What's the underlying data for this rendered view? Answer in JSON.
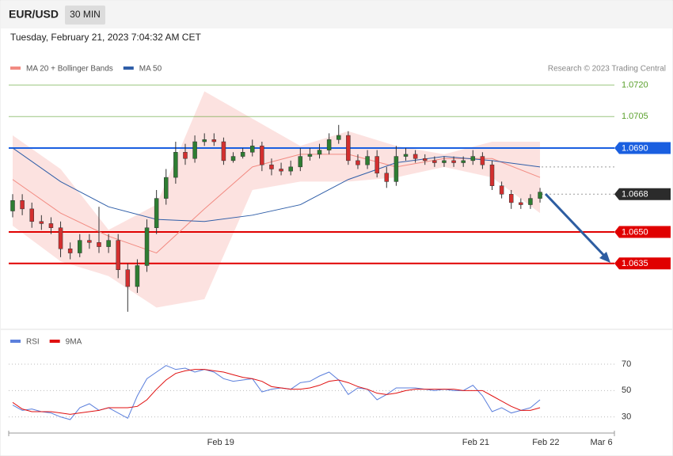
{
  "header": {
    "symbol": "EUR/USD",
    "interval": "30 MIN"
  },
  "timestamp": "Tuesday, February 21, 2023 7:04:32 AM CET",
  "chart_data": [
    {
      "type": "candlestick",
      "source": "Research © 2023 Trading Central",
      "open": [
        1.066,
        1.0665,
        1.0661,
        1.0655,
        1.0654,
        1.0652,
        1.0642,
        1.064,
        1.0646,
        1.0645,
        1.0643,
        1.0646,
        1.0632,
        1.0624,
        1.0634,
        1.0652,
        1.0666,
        1.0676,
        1.0688,
        1.0685,
        1.0693,
        1.0694,
        1.0693,
        1.0684,
        1.0686,
        1.0688,
        1.0691,
        1.0682,
        1.068,
        1.0679,
        1.0681,
        1.0686,
        1.0687,
        1.0689,
        1.0694,
        1.0696,
        1.0684,
        1.0682,
        1.0686,
        1.0678,
        1.0674,
        1.0686,
        1.0687,
        1.0685,
        1.0684,
        1.0683,
        1.0684,
        1.0683,
        1.0684,
        1.0686,
        1.0682,
        1.0672,
        1.0668,
        1.0664,
        1.0663,
        1.0666
      ],
      "high": [
        1.0668,
        1.0668,
        1.0664,
        1.0658,
        1.0657,
        1.0655,
        1.0645,
        1.0649,
        1.0649,
        1.0662,
        1.0649,
        1.0649,
        1.0635,
        1.0637,
        1.0656,
        1.067,
        1.068,
        1.0693,
        1.0692,
        1.0696,
        1.0697,
        1.0697,
        1.0695,
        1.0688,
        1.069,
        1.0694,
        1.0693,
        1.0685,
        1.0683,
        1.0684,
        1.069,
        1.069,
        1.0692,
        1.0697,
        1.0701,
        1.0698,
        1.0687,
        1.0689,
        1.0689,
        1.0681,
        1.0691,
        1.069,
        1.0689,
        1.0687,
        1.0686,
        1.0686,
        1.0686,
        1.0686,
        1.0689,
        1.0688,
        1.0684,
        1.0674,
        1.067,
        1.0666,
        1.0668,
        1.0671
      ],
      "low": [
        1.0657,
        1.0658,
        1.0652,
        1.0651,
        1.0649,
        1.0638,
        1.0637,
        1.0638,
        1.0642,
        1.064,
        1.064,
        1.0628,
        1.0612,
        1.0621,
        1.0631,
        1.0649,
        1.0663,
        1.0673,
        1.0682,
        1.0683,
        1.0691,
        1.0691,
        1.0682,
        1.0683,
        1.0685,
        1.0686,
        1.0679,
        1.0677,
        1.0677,
        1.0677,
        1.0679,
        1.0684,
        1.0685,
        1.0687,
        1.0692,
        1.0682,
        1.068,
        1.068,
        1.0676,
        1.0671,
        1.0672,
        1.0684,
        1.0683,
        1.0682,
        1.0681,
        1.0681,
        1.0681,
        1.0681,
        1.0682,
        1.068,
        1.067,
        1.0666,
        1.0661,
        1.0661,
        1.0661,
        1.0664
      ],
      "close": [
        1.0665,
        1.0661,
        1.0655,
        1.0654,
        1.0652,
        1.0642,
        1.064,
        1.0646,
        1.0645,
        1.0643,
        1.0646,
        1.0632,
        1.0624,
        1.0634,
        1.0652,
        1.0666,
        1.0676,
        1.0688,
        1.0685,
        1.0693,
        1.0694,
        1.0693,
        1.0684,
        1.0686,
        1.0688,
        1.0691,
        1.0682,
        1.068,
        1.0679,
        1.0681,
        1.0686,
        1.0687,
        1.0689,
        1.0694,
        1.0696,
        1.0684,
        1.0682,
        1.0686,
        1.0678,
        1.0674,
        1.0686,
        1.0687,
        1.0685,
        1.0684,
        1.0683,
        1.0684,
        1.0683,
        1.0684,
        1.0686,
        1.0682,
        1.0672,
        1.0668,
        1.0664,
        1.0663,
        1.0666,
        1.0669
      ],
      "up_color": "#2e7d32",
      "down_color": "#d32f2f",
      "indicator_index": [
        0,
        5,
        10,
        15,
        20,
        25,
        30,
        35,
        40,
        45,
        50,
        55
      ],
      "series": [
        {
          "name": "MA 20 + Bollinger Bands",
          "color": "#f28b82",
          "values": [
            1.0675,
            1.0659,
            1.0648,
            1.064,
            1.0661,
            1.0681,
            1.0687,
            1.0687,
            1.0681,
            1.0685,
            1.0685,
            1.0676
          ],
          "upper": [
            1.0696,
            1.068,
            1.0651,
            1.0663,
            1.0717,
            1.0704,
            1.0691,
            1.0698,
            1.0691,
            1.0687,
            1.0693,
            1.0693
          ],
          "lower": [
            1.0653,
            1.0636,
            1.0629,
            1.0614,
            1.0618,
            1.067,
            1.0674,
            1.0674,
            1.0676,
            1.0681,
            1.0676,
            1.0659
          ]
        },
        {
          "name": "MA 50",
          "color": "#2f5ea8",
          "values": [
            1.069,
            1.0674,
            1.0662,
            1.0656,
            1.0655,
            1.0658,
            1.0663,
            1.0675,
            1.0683,
            1.0686,
            1.0684,
            1.0681
          ]
        }
      ],
      "ylim": [
        1.0604,
        1.0736
      ],
      "levels": [
        {
          "value": 1.072,
          "label": "1.0720",
          "color": "#5aa02c",
          "line": "solid",
          "tag": false
        },
        {
          "value": 1.0705,
          "label": "1.0705",
          "color": "#5aa02c",
          "line": "solid",
          "tag": false
        },
        {
          "value": 1.069,
          "label": "1.0690",
          "color": "#1a5fe0",
          "line": "solid",
          "tag": true
        },
        {
          "value": 1.0668,
          "label": "1.0668",
          "color": "#2b2b2b",
          "line": "dotted",
          "tag": true
        },
        {
          "value": 1.065,
          "label": "1.0650",
          "color": "#e00000",
          "line": "solid",
          "tag": true
        },
        {
          "value": 1.0635,
          "label": "1.0635",
          "color": "#e00000",
          "line": "solid",
          "tag": true
        }
      ]
    },
    {
      "type": "line",
      "series": [
        {
          "name": "RSI",
          "color": "#5b7fdc",
          "values": [
            39,
            35,
            36,
            34,
            33,
            30,
            28,
            37,
            40,
            35,
            37,
            33,
            29,
            46,
            59,
            64,
            69,
            66,
            67,
            64,
            66,
            64,
            59,
            57,
            58,
            59,
            49,
            51,
            52,
            51,
            56,
            57,
            61,
            64,
            58,
            47,
            52,
            51,
            43,
            47,
            52,
            52,
            52,
            51,
            50,
            51,
            50,
            50,
            54,
            46,
            34,
            37,
            33,
            35,
            37,
            43
          ]
        },
        {
          "name": "9MA",
          "color": "#e01010",
          "values": [
            41,
            36,
            34,
            34,
            34,
            33,
            32,
            33,
            34,
            35,
            37,
            37,
            37,
            38,
            43,
            51,
            58,
            63,
            65,
            66,
            66,
            65,
            64,
            62,
            60,
            59,
            57,
            53,
            52,
            51,
            51,
            52,
            54,
            57,
            58,
            56,
            53,
            51,
            48,
            47,
            48,
            50,
            51,
            51,
            51,
            51,
            51,
            50,
            50,
            50,
            46,
            42,
            38,
            35,
            35,
            37
          ]
        }
      ],
      "ylim": [
        19,
        82
      ],
      "yticks": [
        30,
        50,
        70
      ],
      "grid": true,
      "xticks": [
        {
          "value": 21.7,
          "label": "Feb 19"
        },
        {
          "value": 48.3,
          "label": "Feb 21"
        },
        {
          "value": 55.6,
          "label": "Feb 22"
        },
        {
          "value": 61.4,
          "label": "Mar 6"
        }
      ]
    }
  ]
}
